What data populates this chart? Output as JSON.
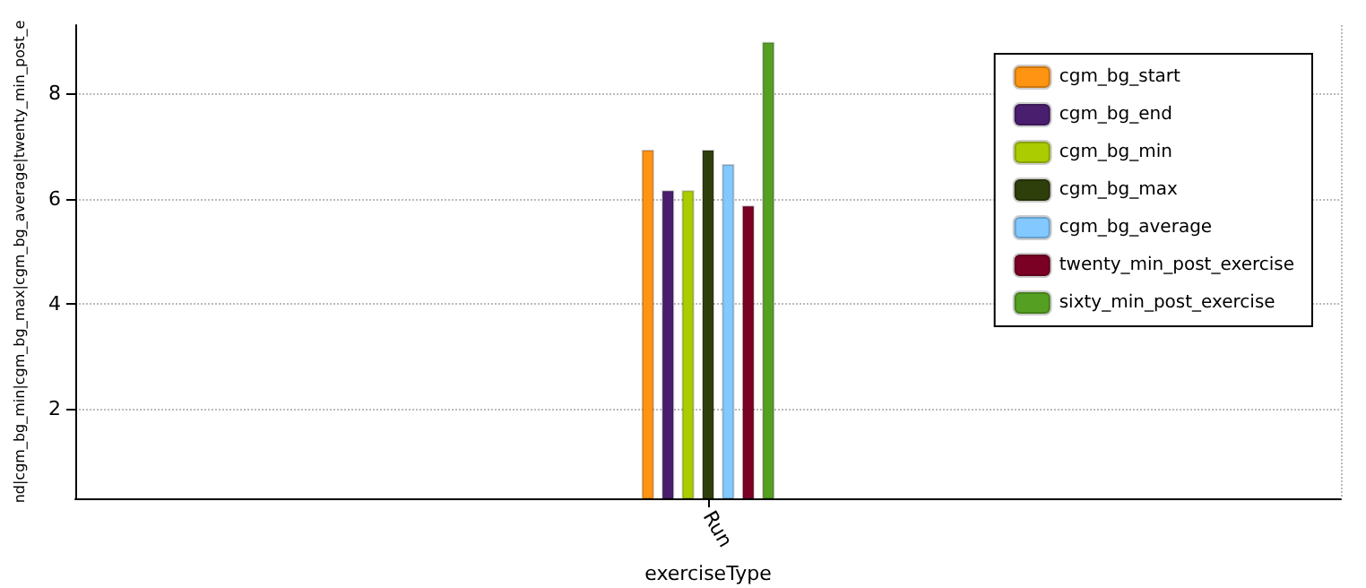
{
  "chart_data": {
    "type": "bar",
    "xlabel": "exerciseType",
    "ylabel": "nd|cgm_bg_min|cgm_bg_max|cgm_bg_average|twenty_min_post_e",
    "categories": [
      "Run"
    ],
    "series": [
      {
        "name": "cgm_bg_start",
        "color": "#ff9412",
        "values": [
          6.93
        ]
      },
      {
        "name": "cgm_bg_end",
        "color": "#4a1e6e",
        "values": [
          6.16
        ]
      },
      {
        "name": "cgm_bg_min",
        "color": "#aacc00",
        "values": [
          6.16
        ]
      },
      {
        "name": "cgm_bg_max",
        "color": "#2f3f0b",
        "values": [
          6.93
        ]
      },
      {
        "name": "cgm_bg_average",
        "color": "#83c8ff",
        "values": [
          6.66
        ]
      },
      {
        "name": "twenty_min_post_exercise",
        "color": "#7a0024",
        "values": [
          5.87
        ]
      },
      {
        "name": "sixty_min_post_exercise",
        "color": "#55a022",
        "values": [
          8.98
        ]
      }
    ],
    "ylim": [
      0.3,
      9.3
    ],
    "yticks": [
      2,
      4,
      6,
      8
    ],
    "grid": true,
    "legend": "top right"
  }
}
